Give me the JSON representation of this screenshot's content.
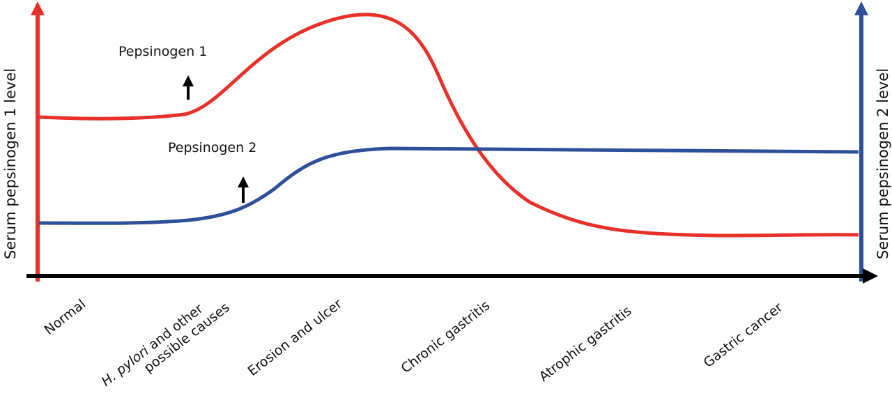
{
  "colors": {
    "pepsinogen1": "#e8312b",
    "pepsinogen2": "#2e4f99",
    "x_axis": "#000000",
    "marker_arrow": "#000000"
  },
  "axes": {
    "left_label": "Serum pepsinogen 1 level",
    "right_label": "Serum pepsinogen 2 level"
  },
  "series": {
    "pepsinogen1": {
      "name": "Pepsinogen 1"
    },
    "pepsinogen2": {
      "name": "Pepsinogen 2"
    }
  },
  "categories": {
    "normal": "Normal",
    "hpylori_italic": "H. pylori",
    "hpylori_rest": " and other",
    "hpylori_line2": "possible causes",
    "erosion": "Erosion and ulcer",
    "chronic": "Chronic gastritis",
    "atrophic": "Atrophic gastritis",
    "cancer": "Gastric cancer"
  },
  "icons": {
    "up_arrow_1": "up-arrow-icon",
    "up_arrow_2": "up-arrow-icon"
  }
}
